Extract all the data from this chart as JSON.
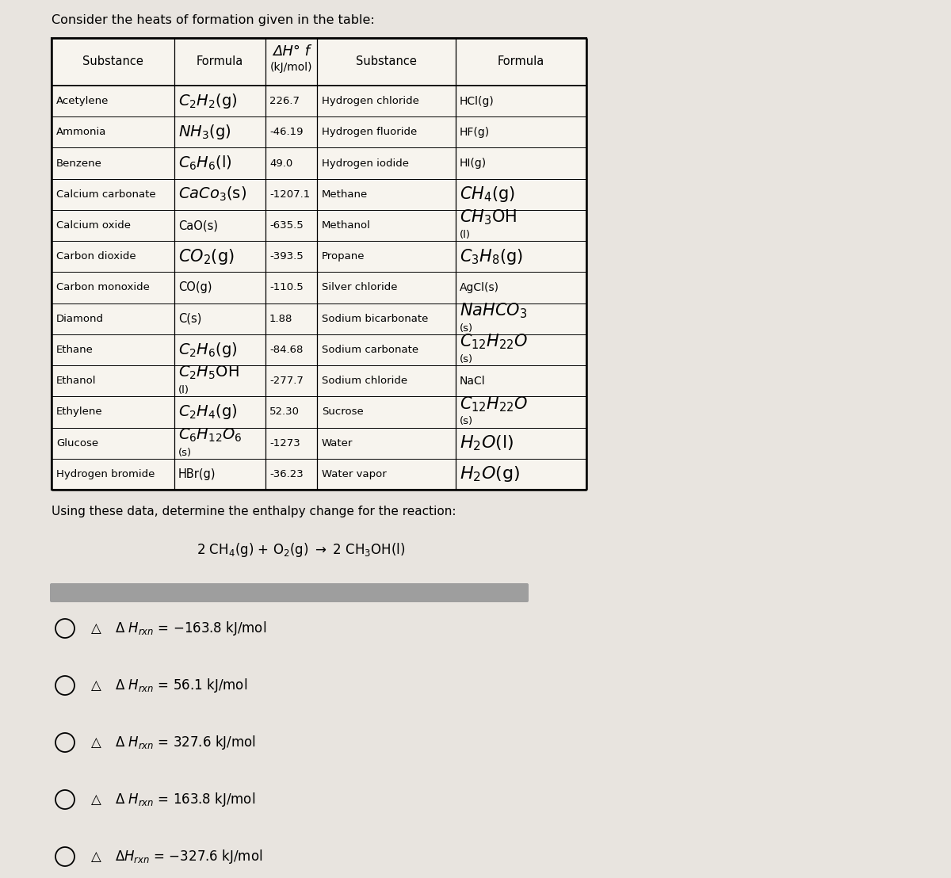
{
  "title": "Consider the heats of formation given in the table:",
  "bg_color": "#e8e4df",
  "table_bg": "#f5f2ec",
  "header_cols": [
    "Substance",
    "Formula",
    "ΔH° f\n(kJ/mol)",
    "Substance",
    "Formula"
  ],
  "left_substances": [
    "Acetylene",
    "Ammonia",
    "Benzene",
    "Calcium carbonate",
    "Calcium oxide",
    "Carbon dioxide",
    "Carbon monoxide",
    "Diamond",
    "Ethane",
    "Ethanol",
    "Ethylene",
    "Glucose",
    "Hydrogen bromide"
  ],
  "left_dh": [
    "226.7",
    "-46.19",
    "49.0",
    "-1207.1",
    "-635.5",
    "-393.5",
    "-110.5",
    "1.88",
    "-84.68",
    "-277.7",
    "52.30",
    "-1273",
    "-36.23"
  ],
  "right_substances": [
    "Hydrogen chloride",
    "Hydrogen fluoride",
    "Hydrogen iodide",
    "Methane",
    "Methanol",
    "Propane",
    "Silver chloride",
    "Sodium bicarbonate",
    "Sodium carbonate",
    "Sodium chloride",
    "Sucrose",
    "Water",
    "Water vapor"
  ],
  "question": "Using these data, determine the enthalpy change for the reaction:",
  "bar_color": "#9e9e9e",
  "choice_texts": [
    "= −163.8 kJ/mol",
    "= 56.1 kJ/mol",
    "= 327.6 kJ/mol",
    "= 163.8 kJ/mol",
    "= −327.6 kJ/mol"
  ]
}
